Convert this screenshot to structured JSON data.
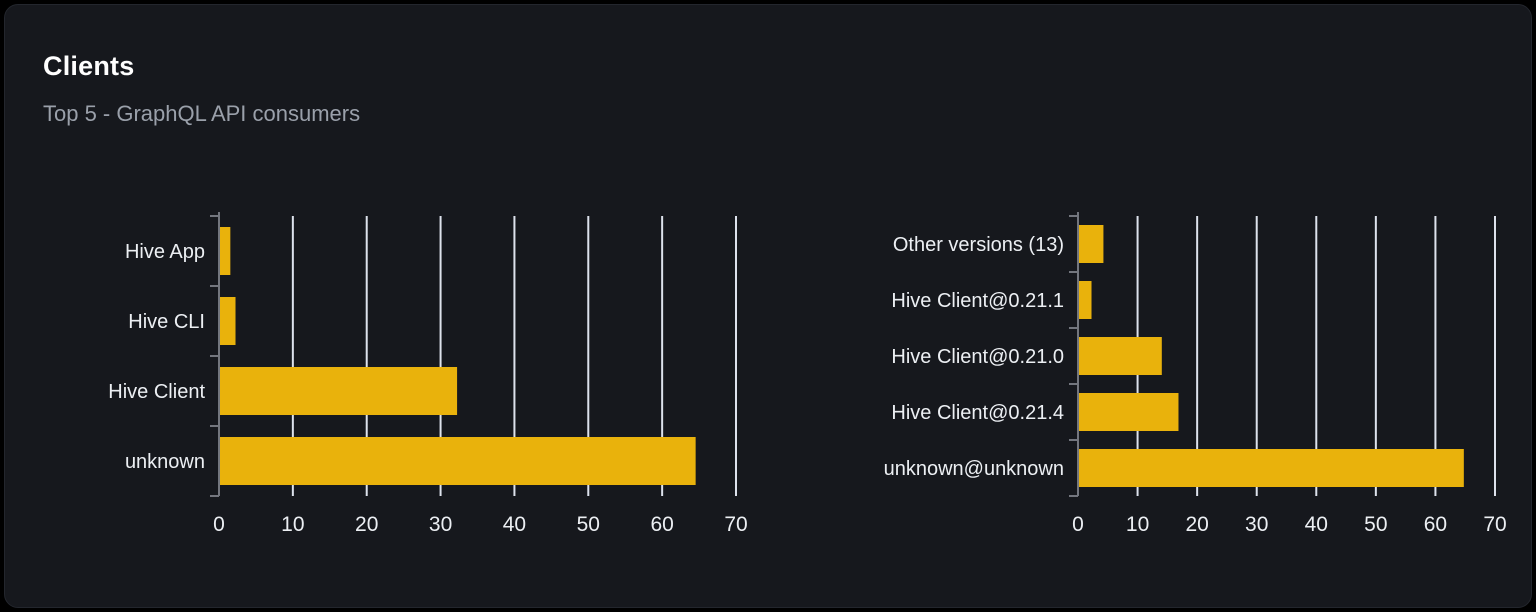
{
  "card": {
    "title": "Clients",
    "subtitle": "Top 5 - GraphQL API consumers"
  },
  "colors": {
    "page_bg": "#000000",
    "card_bg": "#16181d",
    "title": "#ffffff",
    "subtitle": "#9aa0aa",
    "bar": "#e9b20c",
    "grid": "#dde2ec",
    "axis": "#73767e",
    "label": "#eceff3"
  },
  "chart_data": [
    {
      "type": "bar",
      "orientation": "horizontal",
      "categories": [
        "Hive App",
        "Hive CLI",
        "Hive Client",
        "unknown"
      ],
      "values": [
        1.4,
        2.1,
        32.1,
        64.4
      ],
      "xlim": [
        0,
        70
      ],
      "xticks": [
        0,
        10,
        20,
        30,
        40,
        50,
        60,
        70
      ],
      "grid": true,
      "legend": false
    },
    {
      "type": "bar",
      "orientation": "horizontal",
      "categories": [
        "Other versions (13)",
        "Hive Client@0.21.1",
        "Hive Client@0.21.0",
        "Hive Client@0.21.4",
        "unknown@unknown"
      ],
      "values": [
        4.1,
        2.1,
        13.9,
        16.7,
        64.6
      ],
      "xlim": [
        0,
        70
      ],
      "xticks": [
        0,
        10,
        20,
        30,
        40,
        50,
        60,
        70
      ],
      "grid": true,
      "legend": false
    }
  ]
}
